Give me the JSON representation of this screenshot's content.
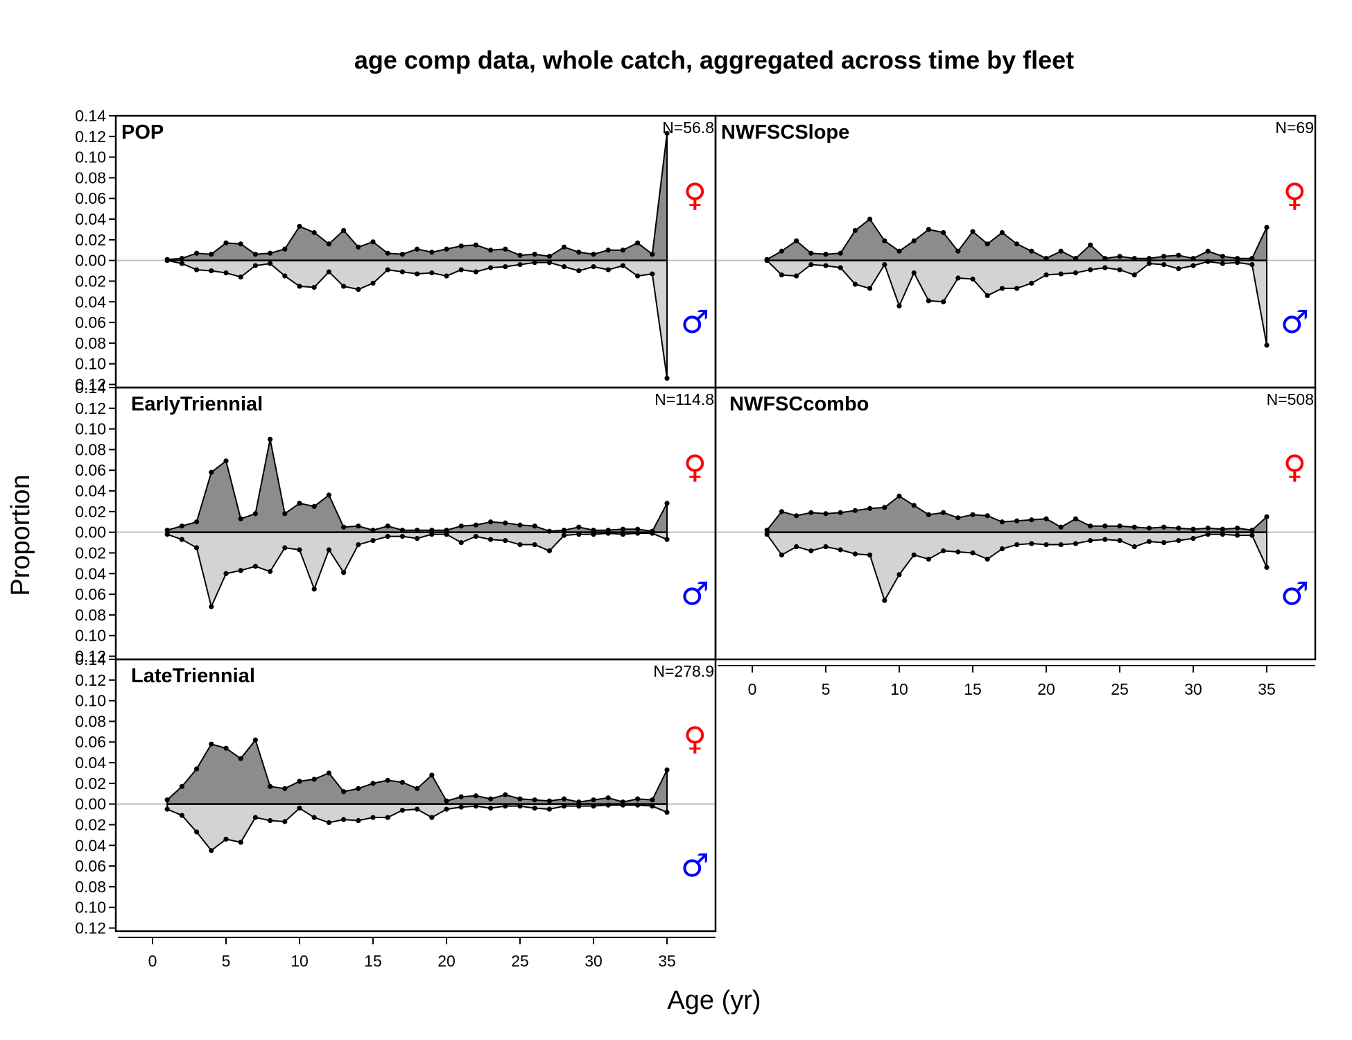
{
  "chart_data": {
    "type": "area",
    "title": "age comp data, whole catch, aggregated across time by fleet",
    "xlabel": "Age (yr)",
    "ylabel": "Proportion",
    "xlim": [
      -2.5,
      38.3
    ],
    "ylim": [
      -0.123,
      0.14
    ],
    "x_ticks": [
      0,
      5,
      10,
      15,
      20,
      25,
      30,
      35
    ],
    "y_ticks": [
      {
        "value": 0.14,
        "label": "0.14"
      },
      {
        "value": 0.12,
        "label": "0.12"
      },
      {
        "value": 0.1,
        "label": "0.10"
      },
      {
        "value": 0.08,
        "label": "0.08"
      },
      {
        "value": 0.06,
        "label": "0.06"
      },
      {
        "value": 0.04,
        "label": "0.04"
      },
      {
        "value": 0.02,
        "label": "0.02"
      },
      {
        "value": 0.0,
        "label": "0.00"
      },
      {
        "value": -0.02,
        "label": "0.02"
      },
      {
        "value": -0.04,
        "label": "0.04"
      },
      {
        "value": -0.06,
        "label": "0.06"
      },
      {
        "value": -0.08,
        "label": "0.08"
      },
      {
        "value": -0.1,
        "label": "0.10"
      },
      {
        "value": -0.12,
        "label": "0.12"
      }
    ],
    "sex_symbols": {
      "female": "♀",
      "male": "♂",
      "female_color": "#ff0000",
      "male_color": "#0000ff"
    },
    "colors": {
      "female_fill": "#8c8c8c",
      "male_fill": "#d3d3d3",
      "zero_line": "#bebebe",
      "line": "#000000"
    },
    "ages": [
      1,
      2,
      3,
      4,
      5,
      6,
      7,
      8,
      9,
      10,
      11,
      12,
      13,
      14,
      15,
      16,
      17,
      18,
      19,
      20,
      21,
      22,
      23,
      24,
      25,
      26,
      27,
      28,
      29,
      30,
      31,
      32,
      33,
      34,
      35
    ],
    "panels": [
      {
        "name": "POP",
        "n_label": "N=56.8",
        "female": [
          0.001,
          0.002,
          0.007,
          0.006,
          0.017,
          0.016,
          0.006,
          0.007,
          0.011,
          0.033,
          0.027,
          0.016,
          0.029,
          0.013,
          0.018,
          0.007,
          0.006,
          0.011,
          0.008,
          0.011,
          0.014,
          0.015,
          0.01,
          0.011,
          0.005,
          0.006,
          0.004,
          0.013,
          0.008,
          0.006,
          0.01,
          0.01,
          0.017,
          0.006,
          0.123
        ],
        "male": [
          0.0,
          0.003,
          0.009,
          0.01,
          0.012,
          0.016,
          0.005,
          0.003,
          0.015,
          0.025,
          0.026,
          0.011,
          0.025,
          0.028,
          0.022,
          0.009,
          0.011,
          0.013,
          0.012,
          0.015,
          0.009,
          0.011,
          0.007,
          0.006,
          0.004,
          0.002,
          0.002,
          0.006,
          0.01,
          0.006,
          0.009,
          0.005,
          0.015,
          0.013,
          0.114
        ]
      },
      {
        "name": "NWFSCSlope",
        "n_label": "N=69",
        "female": [
          0.001,
          0.009,
          0.019,
          0.007,
          0.006,
          0.007,
          0.029,
          0.04,
          0.019,
          0.009,
          0.019,
          0.03,
          0.027,
          0.009,
          0.028,
          0.016,
          0.027,
          0.016,
          0.009,
          0.002,
          0.009,
          0.002,
          0.015,
          0.002,
          0.004,
          0.002,
          0.002,
          0.004,
          0.005,
          0.002,
          0.009,
          0.004,
          0.002,
          0.002,
          0.032
        ],
        "male": [
          0.0,
          0.014,
          0.015,
          0.004,
          0.005,
          0.007,
          0.023,
          0.027,
          0.004,
          0.044,
          0.012,
          0.039,
          0.04,
          0.017,
          0.018,
          0.034,
          0.027,
          0.027,
          0.022,
          0.014,
          0.013,
          0.012,
          0.009,
          0.007,
          0.009,
          0.014,
          0.003,
          0.004,
          0.008,
          0.005,
          0.001,
          0.003,
          0.002,
          0.004,
          0.082
        ]
      },
      {
        "name": "EarlyTriennial",
        "n_label": "N=114.8",
        "female": [
          0.002,
          0.006,
          0.01,
          0.058,
          0.069,
          0.013,
          0.018,
          0.09,
          0.018,
          0.028,
          0.025,
          0.036,
          0.005,
          0.006,
          0.002,
          0.006,
          0.002,
          0.002,
          0.002,
          0.002,
          0.006,
          0.007,
          0.01,
          0.009,
          0.007,
          0.006,
          0.001,
          0.002,
          0.005,
          0.002,
          0.002,
          0.003,
          0.003,
          0.001,
          0.028
        ],
        "male": [
          0.002,
          0.007,
          0.015,
          0.072,
          0.04,
          0.037,
          0.033,
          0.038,
          0.015,
          0.017,
          0.055,
          0.017,
          0.039,
          0.012,
          0.008,
          0.004,
          0.004,
          0.006,
          0.002,
          0.002,
          0.01,
          0.004,
          0.007,
          0.008,
          0.012,
          0.012,
          0.018,
          0.003,
          0.002,
          0.002,
          0.001,
          0.002,
          0.001,
          0.001,
          0.007
        ]
      },
      {
        "name": "NWFSCcombo",
        "n_label": "N=508",
        "female": [
          0.002,
          0.02,
          0.016,
          0.019,
          0.018,
          0.019,
          0.021,
          0.023,
          0.024,
          0.035,
          0.026,
          0.017,
          0.019,
          0.014,
          0.017,
          0.016,
          0.01,
          0.011,
          0.012,
          0.013,
          0.005,
          0.013,
          0.006,
          0.006,
          0.006,
          0.005,
          0.004,
          0.005,
          0.004,
          0.003,
          0.004,
          0.003,
          0.004,
          0.002,
          0.015
        ],
        "male": [
          0.002,
          0.022,
          0.014,
          0.018,
          0.014,
          0.017,
          0.021,
          0.022,
          0.066,
          0.041,
          0.022,
          0.026,
          0.018,
          0.019,
          0.02,
          0.026,
          0.016,
          0.012,
          0.011,
          0.012,
          0.012,
          0.011,
          0.008,
          0.007,
          0.008,
          0.014,
          0.009,
          0.01,
          0.008,
          0.006,
          0.002,
          0.002,
          0.003,
          0.003,
          0.034
        ]
      },
      {
        "name": "LateTriennial",
        "n_label": "N=278.9",
        "female": [
          0.004,
          0.017,
          0.034,
          0.058,
          0.054,
          0.044,
          0.062,
          0.017,
          0.015,
          0.022,
          0.024,
          0.03,
          0.012,
          0.015,
          0.02,
          0.023,
          0.021,
          0.015,
          0.028,
          0.003,
          0.007,
          0.008,
          0.005,
          0.009,
          0.005,
          0.004,
          0.003,
          0.005,
          0.002,
          0.004,
          0.006,
          0.002,
          0.005,
          0.004,
          0.033
        ],
        "male": [
          0.005,
          0.011,
          0.027,
          0.045,
          0.034,
          0.037,
          0.013,
          0.016,
          0.017,
          0.004,
          0.013,
          0.018,
          0.015,
          0.016,
          0.013,
          0.013,
          0.006,
          0.005,
          0.013,
          0.005,
          0.003,
          0.002,
          0.004,
          0.002,
          0.002,
          0.004,
          0.005,
          0.002,
          0.002,
          0.002,
          0.001,
          0.001,
          0.001,
          0.002,
          0.008
        ]
      }
    ]
  }
}
